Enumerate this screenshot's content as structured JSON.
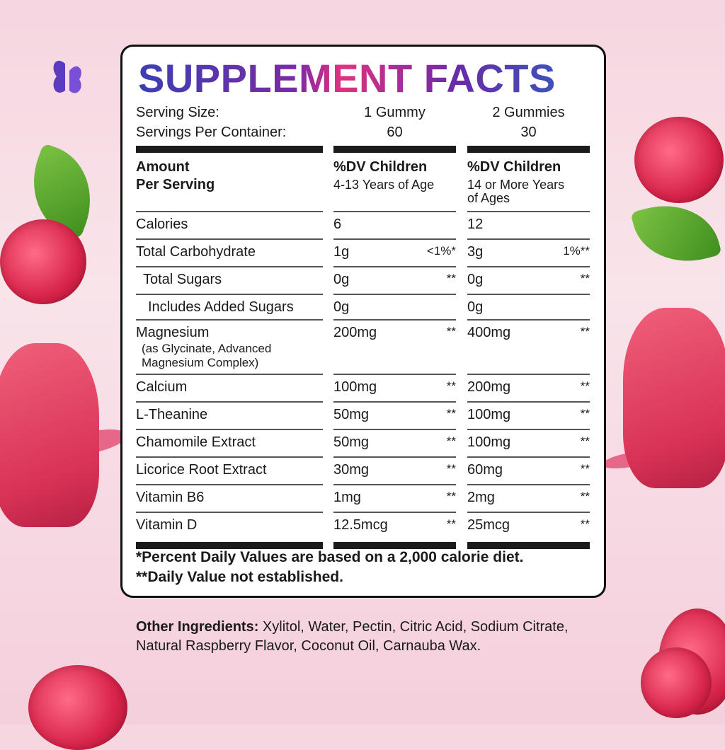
{
  "title": "SUPPLEMENT FACTS",
  "serving_size": {
    "label": "Serving Size:",
    "col1": "1 Gummy",
    "col2": "2 Gummies"
  },
  "servings_per_container": {
    "label": "Servings Per Container:",
    "col1": "60",
    "col2": "30"
  },
  "header": {
    "amount": "Amount",
    "per_serving": "Per Serving",
    "col1_title": "%DV Children",
    "col1_sub": "4-13 Years of Age",
    "col2_title": "%DV Children",
    "col2_sub1": "14 or More Years",
    "col2_sub2": "of Ages"
  },
  "rows": [
    {
      "name": "Calories",
      "a1": "6",
      "d1": "",
      "a2": "12",
      "d2": ""
    },
    {
      "name": "Total Carbohydrate",
      "a1": "1g",
      "d1": "<1%*",
      "a2": "3g",
      "d2": "1%**"
    },
    {
      "name": "Total Sugars",
      "a1": "0g",
      "d1": "**",
      "a2": "0g",
      "d2": "**"
    },
    {
      "name": "Includes Added Sugars",
      "a1": "0g",
      "d1": "",
      "a2": "0g",
      "d2": ""
    },
    {
      "name": "Magnesium",
      "sub1": "(as Glycinate, Advanced",
      "sub2": "Magnesium Complex)",
      "a1": "200mg",
      "d1": "**",
      "a2": "400mg",
      "d2": "**"
    },
    {
      "name": "Calcium",
      "a1": "100mg",
      "d1": "**",
      "a2": "200mg",
      "d2": "**"
    },
    {
      "name": "L-Theanine",
      "a1": "50mg",
      "d1": "**",
      "a2": "100mg",
      "d2": "**"
    },
    {
      "name": "Chamomile Extract",
      "a1": "50mg",
      "d1": "**",
      "a2": "100mg",
      "d2": "**"
    },
    {
      "name": "Licorice Root Extract",
      "a1": "30mg",
      "d1": "**",
      "a2": "60mg",
      "d2": "**"
    },
    {
      "name": "Vitamin B6",
      "a1": "1mg",
      "d1": "**",
      "a2": "2mg",
      "d2": "**"
    },
    {
      "name": "Vitamin D",
      "a1": "12.5mcg",
      "d1": "**",
      "a2": "25mcg",
      "d2": "**"
    }
  ],
  "footnotes": {
    "f1": "*Percent Daily Values are based on a 2,000 calorie diet.",
    "f2": "**Daily Value not established."
  },
  "other_ingredients": {
    "label": "Other Ingredients:",
    "text": " Xylitol, Water, Pectin, Citric Acid, Sodium Citrate, Natural Raspberry Flavor, Coconut Oil, Carnauba Wax."
  },
  "colors": {
    "title_gradient": [
      "#3b3fb0",
      "#e0327f",
      "#2f5fc0"
    ],
    "background": "#f6d6e0",
    "gummy": "#d93357"
  },
  "logo": "butterfly-icon"
}
